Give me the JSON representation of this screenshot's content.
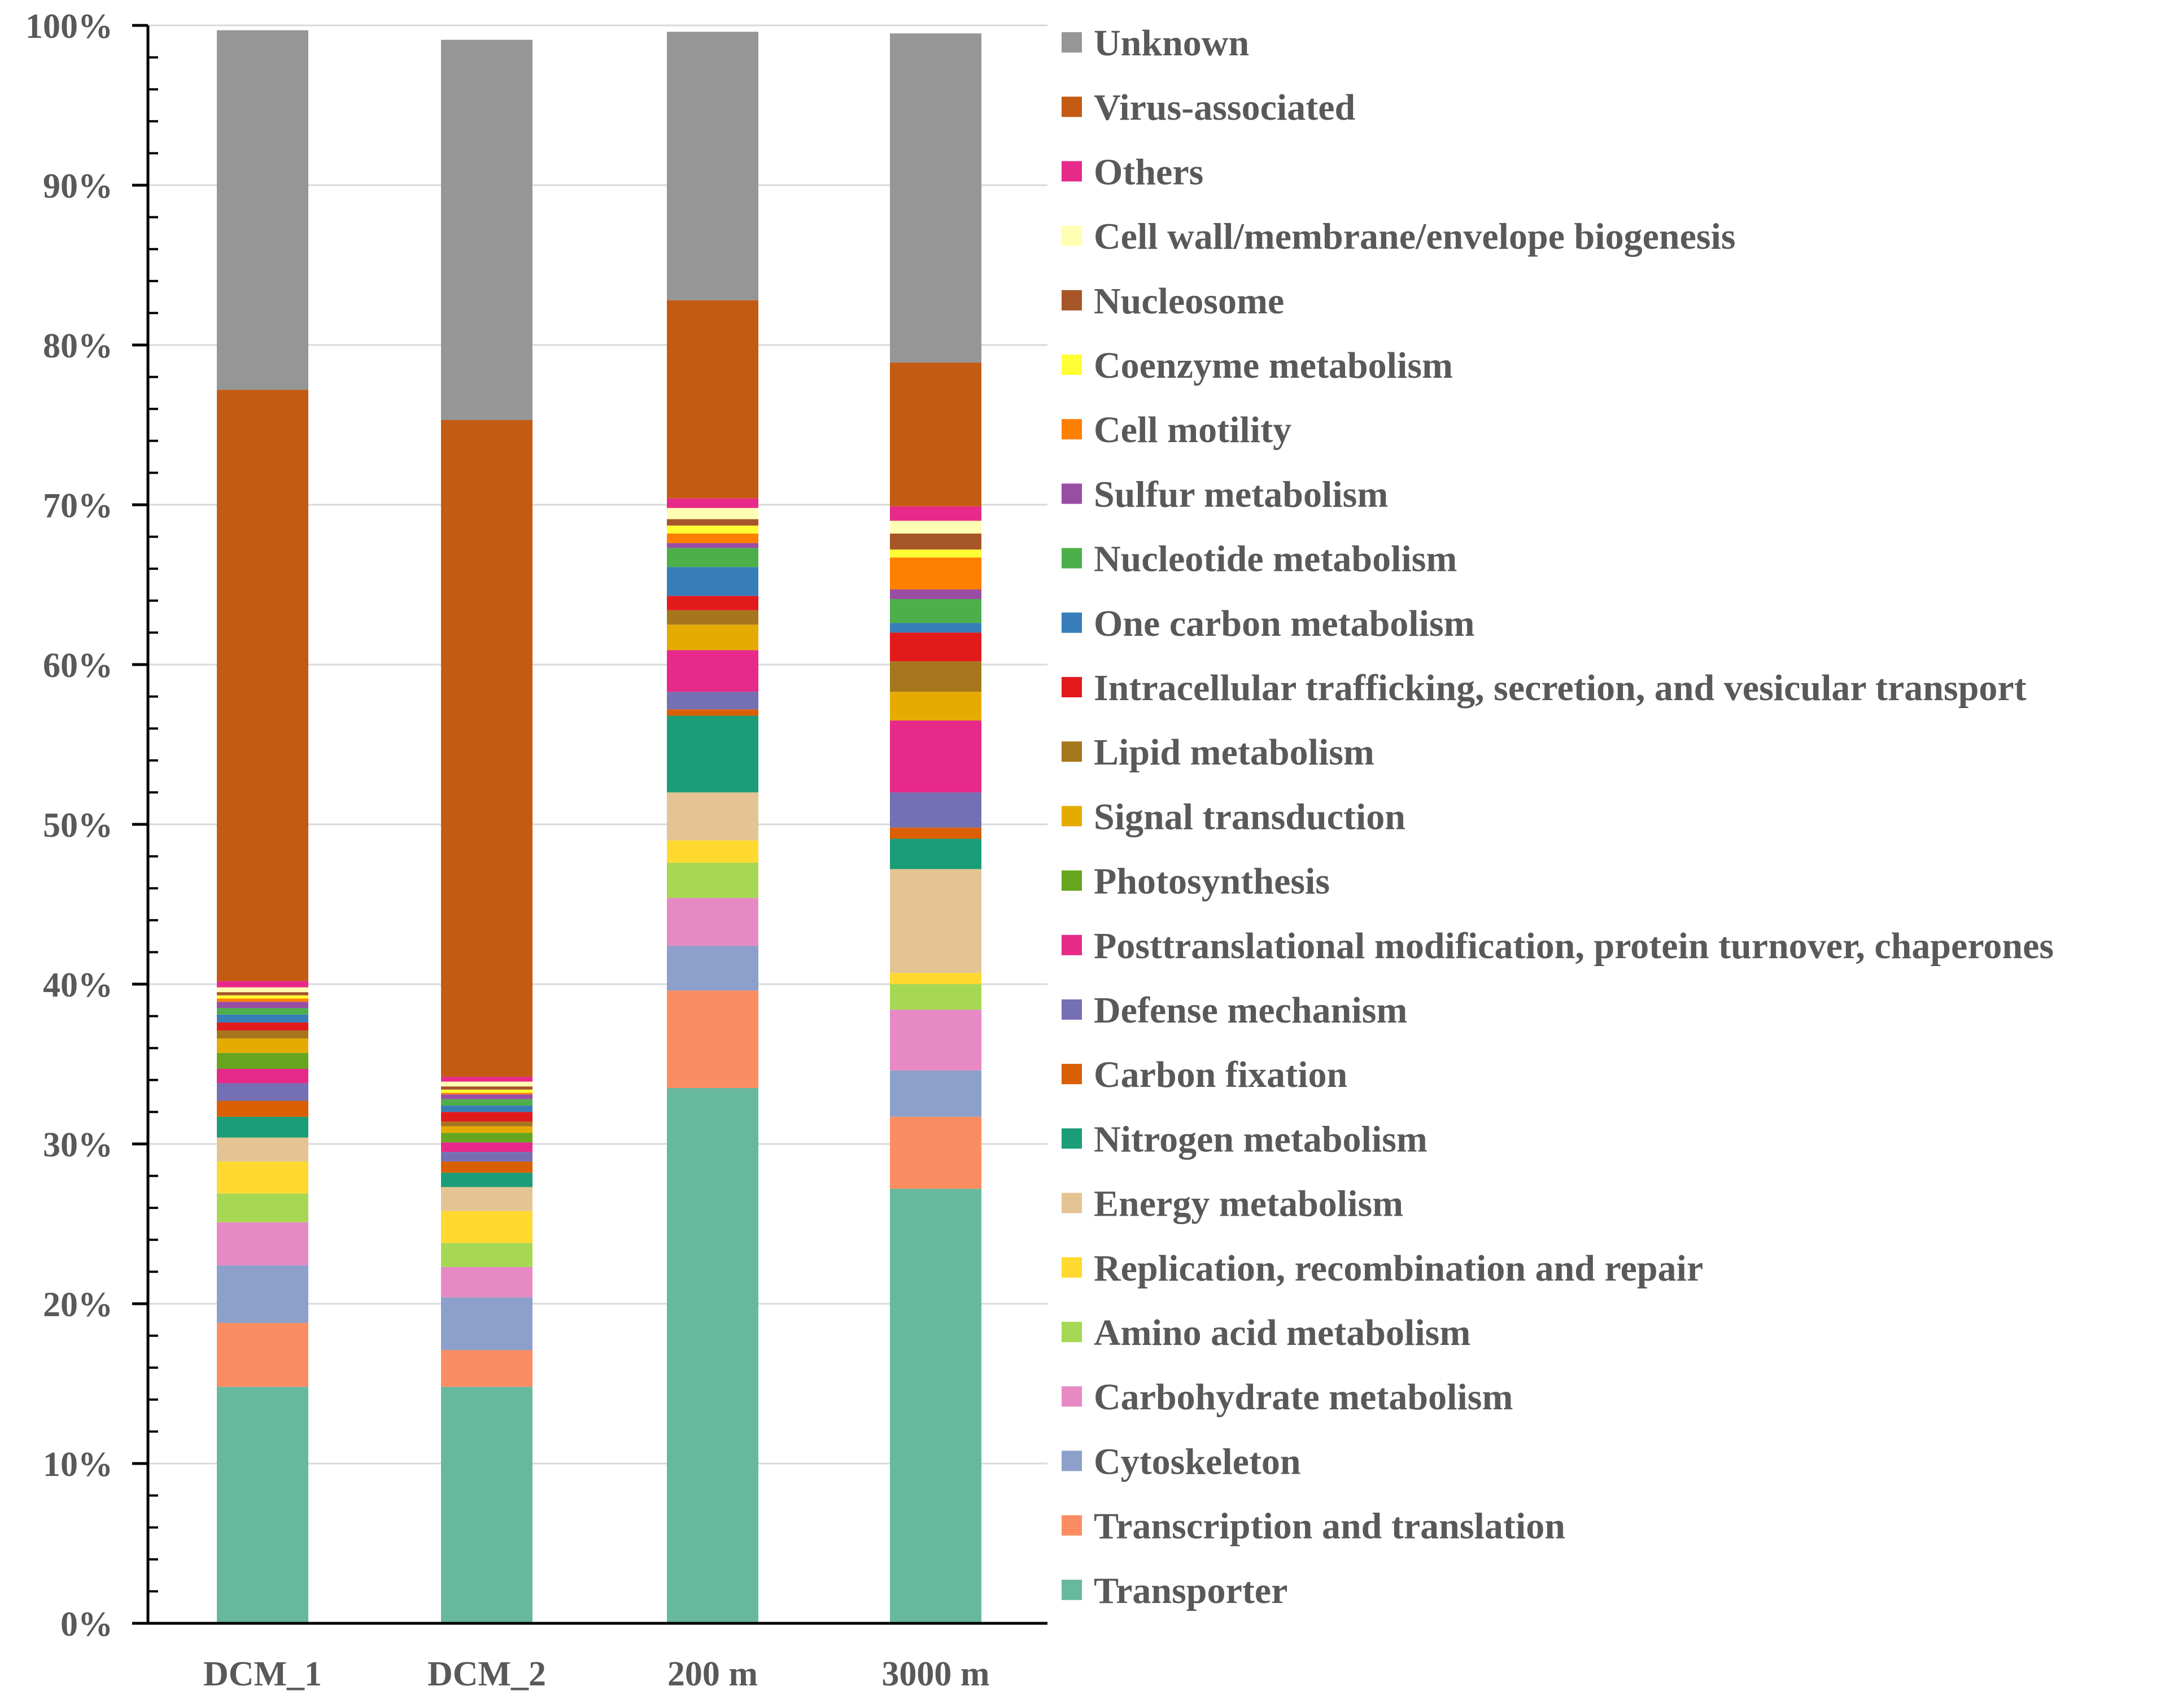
{
  "chart_data": {
    "type": "bar",
    "stacked": true,
    "percent": true,
    "categories": [
      "DCM_1",
      "DCM_2",
      "200 m",
      "3000 m"
    ],
    "y_ticks": [
      "0%",
      "10%",
      "20%",
      "30%",
      "40%",
      "50%",
      "60%",
      "70%",
      "80%",
      "90%",
      "100%"
    ],
    "ylim": [
      0,
      100
    ],
    "legend_position": "right",
    "grid": true,
    "series": [
      {
        "name": "Transporter",
        "color": "#66b99d",
        "values": [
          14.8,
          14.8,
          33.5,
          27.2
        ]
      },
      {
        "name": "Transcription and translation",
        "color": "#fc8d62",
        "values": [
          4.0,
          2.3,
          6.1,
          4.5
        ]
      },
      {
        "name": "Cytoskeleton",
        "color": "#8da0cb",
        "values": [
          3.6,
          3.3,
          2.8,
          2.9
        ]
      },
      {
        "name": "Carbohydrate metabolism",
        "color": "#e78ac3",
        "values": [
          2.7,
          1.9,
          3.0,
          3.8
        ]
      },
      {
        "name": "Amino acid metabolism",
        "color": "#a6d854",
        "values": [
          1.8,
          1.5,
          2.2,
          1.6
        ]
      },
      {
        "name": "Replication, recombination and repair",
        "color": "#ffd92f",
        "values": [
          2.0,
          2.0,
          1.4,
          0.7
        ]
      },
      {
        "name": "Energy metabolism",
        "color": "#e5c494",
        "values": [
          1.5,
          1.5,
          3.0,
          6.5
        ]
      },
      {
        "name": "Nitrogen metabolism",
        "color": "#1b9e77",
        "values": [
          1.3,
          0.9,
          4.8,
          1.9
        ]
      },
      {
        "name": "Carbon fixation",
        "color": "#d95f02",
        "values": [
          1.0,
          0.7,
          0.4,
          0.7
        ]
      },
      {
        "name": "Defense mechanism",
        "color": "#7570b3",
        "values": [
          1.1,
          0.6,
          1.1,
          2.2
        ]
      },
      {
        "name": "Posttranslational modification, protein turnover, chaperones",
        "color": "#e7298a",
        "values": [
          0.9,
          0.6,
          2.6,
          4.5
        ]
      },
      {
        "name": "Photosynthesis",
        "color": "#66a61e",
        "values": [
          1.0,
          0.6,
          0.0,
          0.0
        ]
      },
      {
        "name": "Signal transduction",
        "color": "#e6ab02",
        "values": [
          0.9,
          0.4,
          1.6,
          1.8
        ]
      },
      {
        "name": "Lipid metabolism",
        "color": "#a6761d",
        "values": [
          0.5,
          0.3,
          0.9,
          1.9
        ]
      },
      {
        "name": "Intracellular trafficking, secretion, and vesicular transport",
        "color": "#e31a1c",
        "values": [
          0.5,
          0.6,
          0.9,
          1.8
        ]
      },
      {
        "name": "One carbon metabolism",
        "color": "#377eb8",
        "values": [
          0.5,
          0.4,
          1.8,
          0.6
        ]
      },
      {
        "name": "Nucleotide metabolism",
        "color": "#4daf4a",
        "values": [
          0.4,
          0.4,
          1.2,
          1.5
        ]
      },
      {
        "name": "Sulfur metabolism",
        "color": "#984ea3",
        "values": [
          0.4,
          0.3,
          0.3,
          0.6
        ]
      },
      {
        "name": "Cell motility",
        "color": "#ff7f00",
        "values": [
          0.2,
          0.1,
          0.6,
          2.0
        ]
      },
      {
        "name": "Coenzyme metabolism",
        "color": "#ffff33",
        "values": [
          0.2,
          0.2,
          0.5,
          0.5
        ]
      },
      {
        "name": "Nucleosome",
        "color": "#a65628",
        "values": [
          0.2,
          0.2,
          0.4,
          1.0
        ]
      },
      {
        "name": "Cell wall/membrane/envelope biogenesis",
        "color": "#ffffb3",
        "values": [
          0.3,
          0.3,
          0.7,
          0.8
        ]
      },
      {
        "name": "Others",
        "color": "#e7298a",
        "values": [
          0.4,
          0.3,
          0.6,
          0.9
        ]
      },
      {
        "name": "Virus-associated",
        "color": "#c45b12",
        "values": [
          37.0,
          41.1,
          12.4,
          9.0
        ]
      },
      {
        "name": "Unknown",
        "color": "#969696",
        "values": [
          22.5,
          23.8,
          16.8,
          20.6
        ]
      }
    ]
  }
}
